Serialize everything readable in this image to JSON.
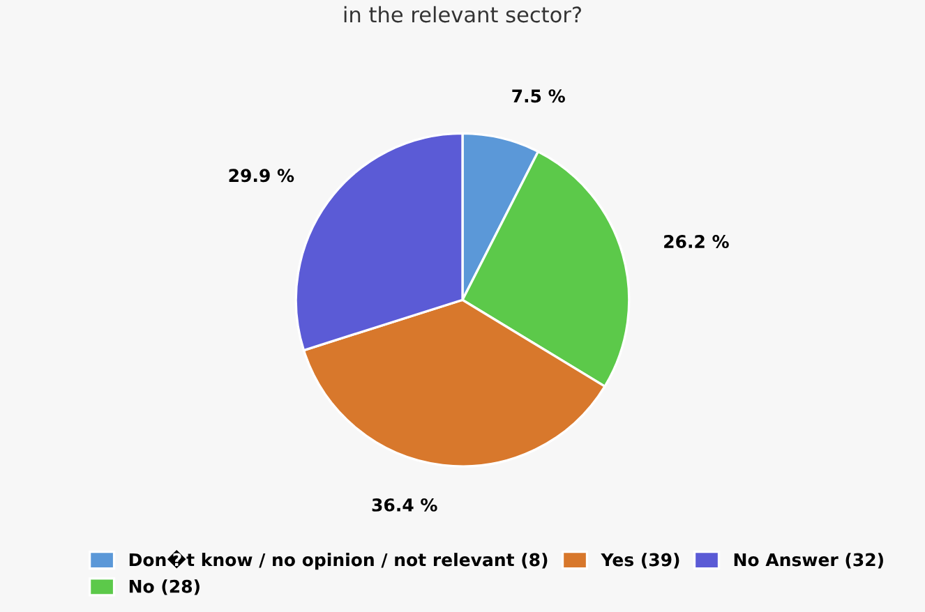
{
  "chart_data": {
    "type": "pie",
    "title": "in the relevant sector?",
    "categories": [
      "Don�t know / no opinion / not relevant (8)",
      "No (28)",
      "Yes (39)",
      "No Answer (32)"
    ],
    "values": [
      7.5,
      26.2,
      36.4,
      29.9
    ],
    "value_labels": [
      "7.5 %",
      "26.2 %",
      "36.4 %",
      "29.9 %"
    ],
    "colors": [
      "#5b98d8",
      "#5cc94a",
      "#d8782c",
      "#5b5bd6"
    ],
    "legend": "bottom"
  }
}
